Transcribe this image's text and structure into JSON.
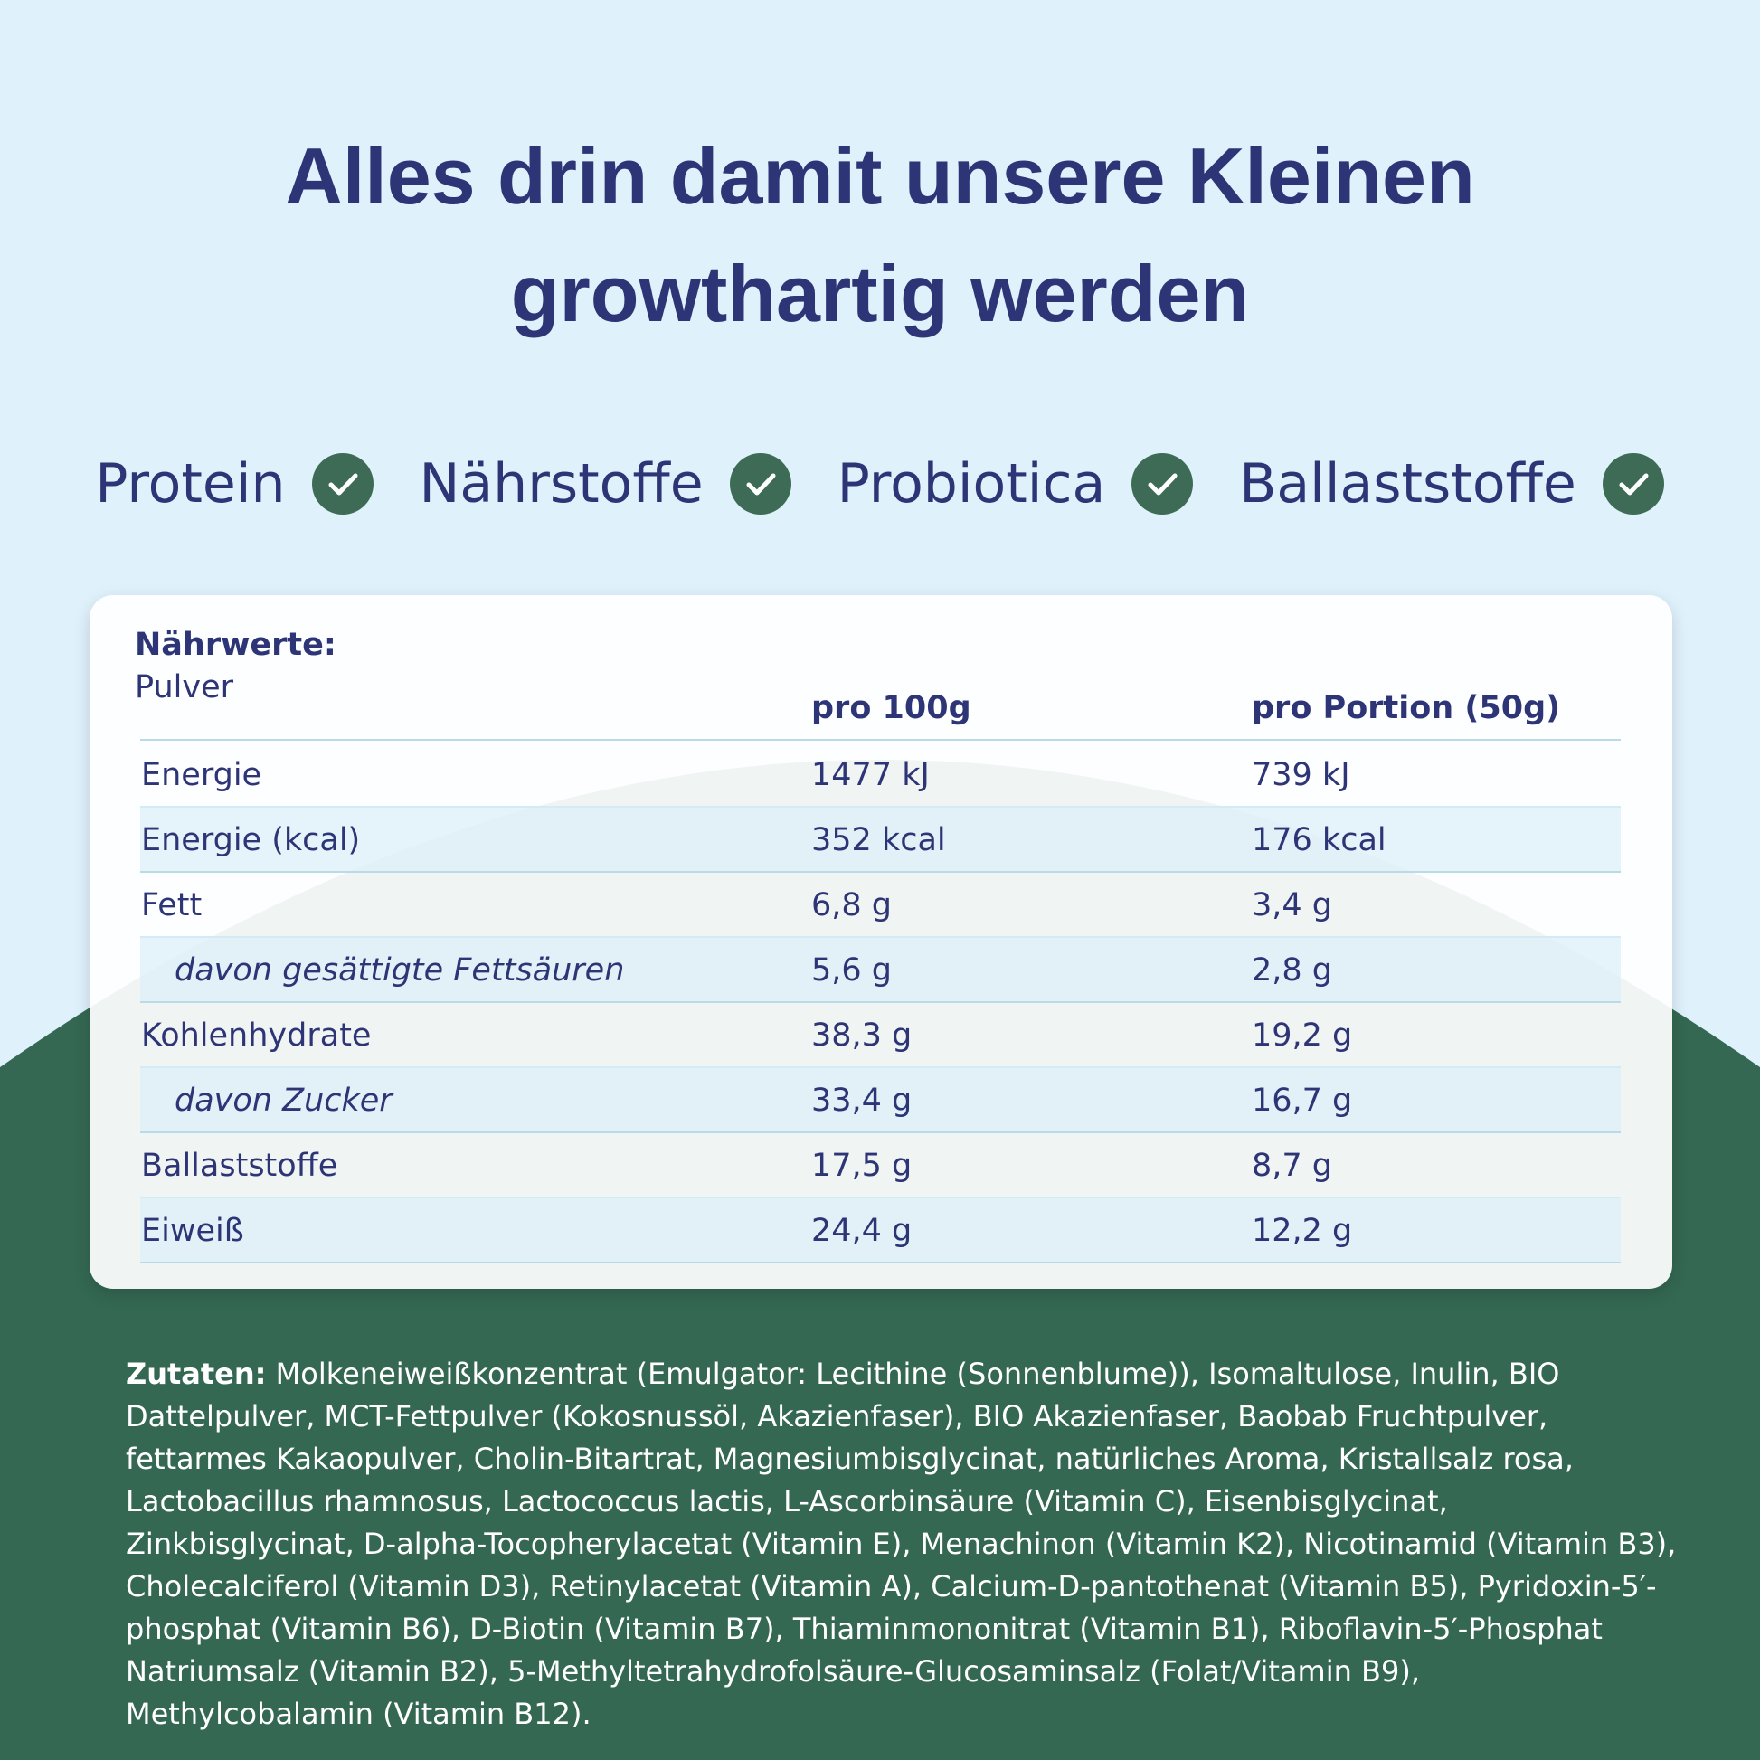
{
  "header": {
    "title_lines": [
      "Alles drin damit unsere Kleinen",
      "growthartig werden"
    ]
  },
  "features": [
    "Protein",
    "Nährstoffe",
    "Probiotica",
    "Ballaststoffe"
  ],
  "table": {
    "title": "Nährwerte:",
    "subtitle": "Pulver",
    "columns": [
      "pro 100g",
      "pro Portion (50g)"
    ],
    "rows": [
      {
        "label": "Energie",
        "cells": [
          "1477 kJ",
          "739 kJ"
        ]
      },
      {
        "label": "Energie (kcal)",
        "cells": [
          "352 kcal",
          "176 kcal"
        ]
      },
      {
        "label": "Fett",
        "cells": [
          "6,8 g",
          "3,4 g"
        ]
      },
      {
        "label": "davon gesättigte Fettsäuren",
        "cells": [
          "5,6 g",
          "2,8 g"
        ],
        "sub": true
      },
      {
        "label": "Kohlenhydrate",
        "cells": [
          "38,3 g",
          "19,2 g"
        ]
      },
      {
        "label": "davon Zucker",
        "cells": [
          "33,4 g",
          "16,7 g"
        ],
        "sub": true
      },
      {
        "label": "Ballaststoffe",
        "cells": [
          "17,5 g",
          "8,7 g"
        ]
      },
      {
        "label": "Eiweiß",
        "cells": [
          "24,4 g",
          "12,2 g"
        ]
      }
    ]
  },
  "ingredients": {
    "label": "Zutaten:",
    "text": "Molkeneiweißkonzentrat (Emulgator: Lecithine (Sonnenblume)), Isomaltulose, Inulin, BIO Dattelpulver, MCT-Fettpulver (Kokosnussöl, Akazienfaser), BIO Akazienfaser, Baobab Fruchtpulver, fettarmes Kakaopulver, Cholin-Bitartrat, Magnesiumbisglycinat, natürliches Aroma, Kristallsalz rosa, Lactobacillus rhamnosus, Lactococcus lactis, L-Ascorbinsäure (Vitamin C), Eisenbisglycinat, Zinkbisglycinat, D-alpha-Tocopherylacetat (Vitamin E), Menachinon (Vitamin K2), Nicotinamid (Vitamin B3), Cholecalciferol (Vitamin D3), Retinylacetat (Vitamin A), Calcium-D-pantothenat (Vitamin B5), Pyridoxin-5′-phosphat (Vitamin B6), D-Biotin (Vitamin B7), Thiaminmononitrat (Vitamin B1), Riboflavin-5′-Phosphat Natriumsalz (Vitamin B2), 5-Methyltetrahydrofolsäure-Glucosaminsalz (Folat/Vitamin B9), Methylcobalamin (Vitamin B12)."
  }
}
